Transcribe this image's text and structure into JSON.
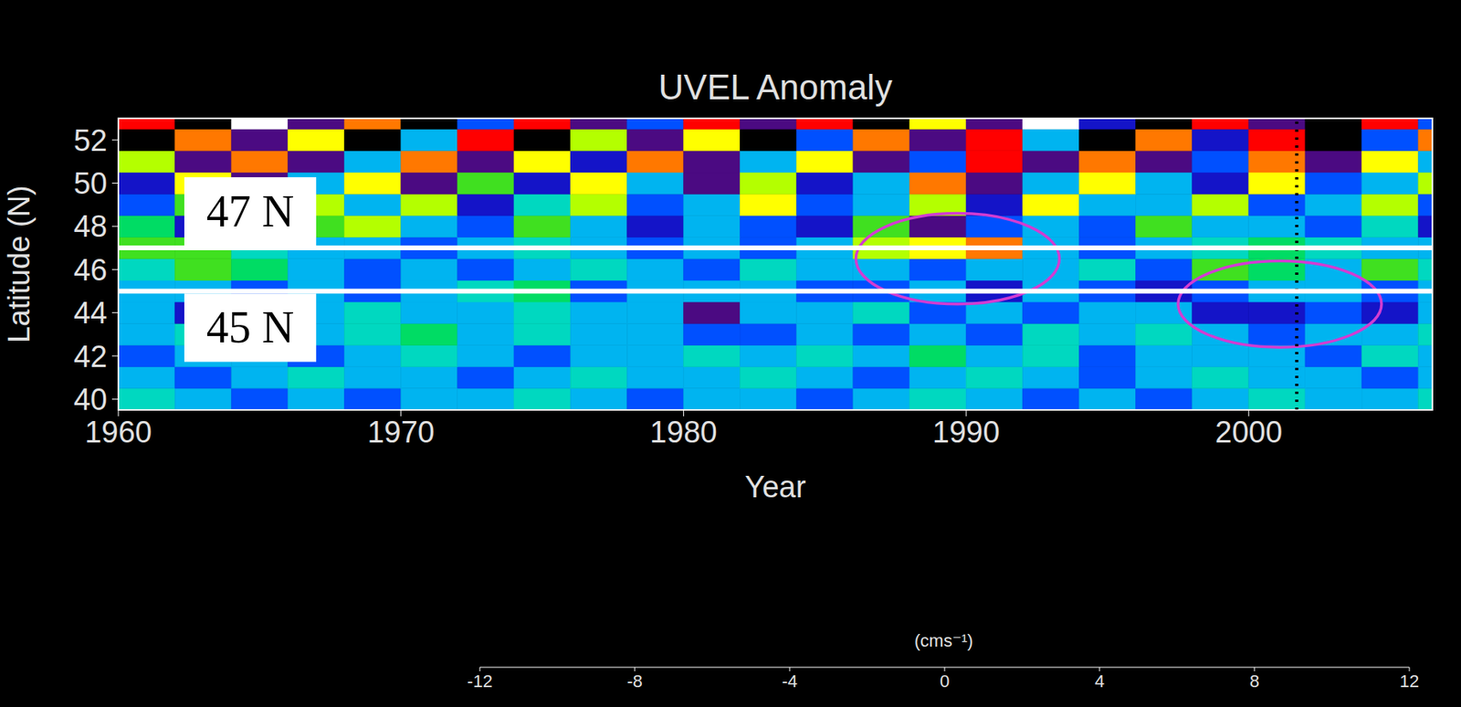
{
  "chart_data": {
    "type": "heatmap",
    "title": "UVEL Anomaly",
    "x_label": "Year",
    "y_label": "Latitude (N)",
    "xlim": [
      1960,
      2006.5
    ],
    "xticks": [
      1960,
      1970,
      1980,
      1990,
      2000
    ],
    "ylim": [
      39.5,
      53
    ],
    "yticks": [
      40,
      42,
      44,
      46,
      48,
      50,
      52
    ],
    "cells": {
      "x_edges": [
        1960,
        1962,
        1964,
        1966,
        1968,
        1970,
        1972,
        1974,
        1976,
        1978,
        1980,
        1982,
        1984,
        1986,
        1988,
        1990,
        1992,
        1994,
        1996,
        1998,
        2000,
        2002,
        2004,
        2006,
        2006.5
      ],
      "y_edges": [
        39.5,
        40.5,
        41.5,
        42.5,
        43.5,
        44.5,
        45.5,
        46.5,
        47.5,
        48.5,
        49.5,
        50.5,
        51.5,
        52.5,
        53
      ],
      "values": [
        [
          -2,
          -3,
          -5,
          -3,
          -6,
          -3,
          -4,
          -2,
          -3,
          -5,
          -3,
          -4,
          -6,
          -3,
          -2,
          -4,
          -5,
          -3,
          -6,
          -3,
          -2,
          -4,
          -3,
          -2
        ],
        [
          -3,
          -5,
          -3,
          -2,
          -4,
          -3,
          -5,
          -3,
          -2,
          -3,
          -4,
          -2,
          -3,
          -5,
          -3,
          -2,
          -3,
          -6,
          -3,
          -2,
          -4,
          -3,
          -5,
          -3
        ],
        [
          -6,
          -3,
          -4,
          -6,
          -3,
          -2,
          -3,
          -5,
          -3,
          -4,
          -2,
          -3,
          -2,
          -4,
          0,
          -3,
          -2,
          -5,
          -3,
          -4,
          -3,
          -6,
          -2,
          -3
        ],
        [
          -3,
          -2,
          -3,
          -4,
          -2,
          0,
          -3,
          -2,
          -4,
          -3,
          -5,
          -6,
          -3,
          -5,
          -3,
          -6,
          -2,
          -3,
          -2,
          -3,
          -5,
          -3,
          -4,
          -2
        ],
        [
          -4,
          -7,
          -5,
          -3,
          -2,
          -3,
          -4,
          -2,
          -3,
          -3,
          -9,
          -4,
          -3,
          -2,
          -5,
          -3,
          -6,
          -4,
          -3,
          -7,
          -8,
          -6,
          -7,
          -3
        ],
        [
          -3,
          -4,
          -6,
          -3,
          -5,
          -3,
          -2,
          0,
          -5,
          -3,
          -4,
          -3,
          -5,
          -6,
          -3,
          -7,
          -3,
          -5,
          -8,
          -6,
          -4,
          -3,
          -5,
          -3
        ],
        [
          -2,
          2,
          0,
          -3,
          -6,
          -3,
          -5,
          -3,
          -2,
          -3,
          -6,
          -2,
          -4,
          -3,
          -6,
          -4,
          -3,
          -2,
          -6,
          2,
          0,
          -3,
          3,
          -2
        ],
        [
          2,
          3,
          -2,
          -4,
          -3,
          -5,
          -3,
          -2,
          -3,
          -5,
          -4,
          -6,
          -3,
          5,
          7,
          8,
          -3,
          -5,
          -3,
          -2,
          0,
          -2,
          -3,
          -4
        ],
        [
          0,
          -7,
          -3,
          2,
          4,
          -3,
          -6,
          3,
          -4,
          -7,
          -3,
          -6,
          -8,
          2,
          -9,
          -5,
          -3,
          -6,
          3,
          -4,
          -3,
          -6,
          -2,
          -7
        ],
        [
          -5,
          3,
          -6,
          5,
          -3,
          4,
          -7,
          -2,
          5,
          -6,
          -3,
          6,
          -5,
          -3,
          4,
          -7,
          6,
          -4,
          -3,
          5,
          -6,
          -3,
          4,
          -5
        ],
        [
          -8,
          6,
          -10,
          -4,
          7,
          -9,
          3,
          -8,
          6,
          -3,
          -9,
          5,
          -7,
          -3,
          8,
          -9,
          -4,
          6,
          -3,
          -8,
          7,
          -6,
          -3,
          4
        ],
        [
          4,
          -10,
          8,
          -9,
          -3,
          9,
          -10,
          6,
          -8,
          9,
          -10,
          -4,
          7,
          -10,
          -6,
          10,
          -9,
          8,
          -10,
          -5,
          9,
          -10,
          6,
          -4
        ],
        [
          -11,
          9,
          -10,
          6,
          -11,
          -4,
          10,
          -11,
          5,
          -10,
          7,
          -11,
          -5,
          9,
          -10,
          11,
          -4,
          -11,
          9,
          -8,
          10,
          -11,
          -6,
          8
        ],
        [
          10,
          -11,
          12,
          -10,
          9,
          -12,
          -5,
          11,
          -10,
          -6,
          11,
          -9,
          10,
          -12,
          7,
          -10,
          12,
          -8,
          -11,
          10,
          -9,
          -12,
          11,
          -5
        ]
      ]
    },
    "colorbar": {
      "range": [
        -12,
        12
      ],
      "ticks": [
        -12,
        -8,
        -4,
        0,
        4,
        8,
        12
      ],
      "label": "(cms⁻¹)"
    },
    "reference_lines": [
      {
        "y": 47,
        "label": "47 N",
        "color": "#ffffff"
      },
      {
        "y": 45,
        "label": "45 N",
        "color": "#ffffff"
      }
    ],
    "vertical_line": {
      "x": 2001.7,
      "line_style": "dotted",
      "color": "#000000"
    },
    "ellipses": [
      {
        "x": 1989.7,
        "y": 46.5,
        "x_radius": 3.6,
        "y_radius": 2.1
      },
      {
        "x": 2001.1,
        "y": 44.4,
        "x_radius": 3.6,
        "y_radius": 2.0
      }
    ],
    "ellipse_color": "#d23cd2"
  }
}
